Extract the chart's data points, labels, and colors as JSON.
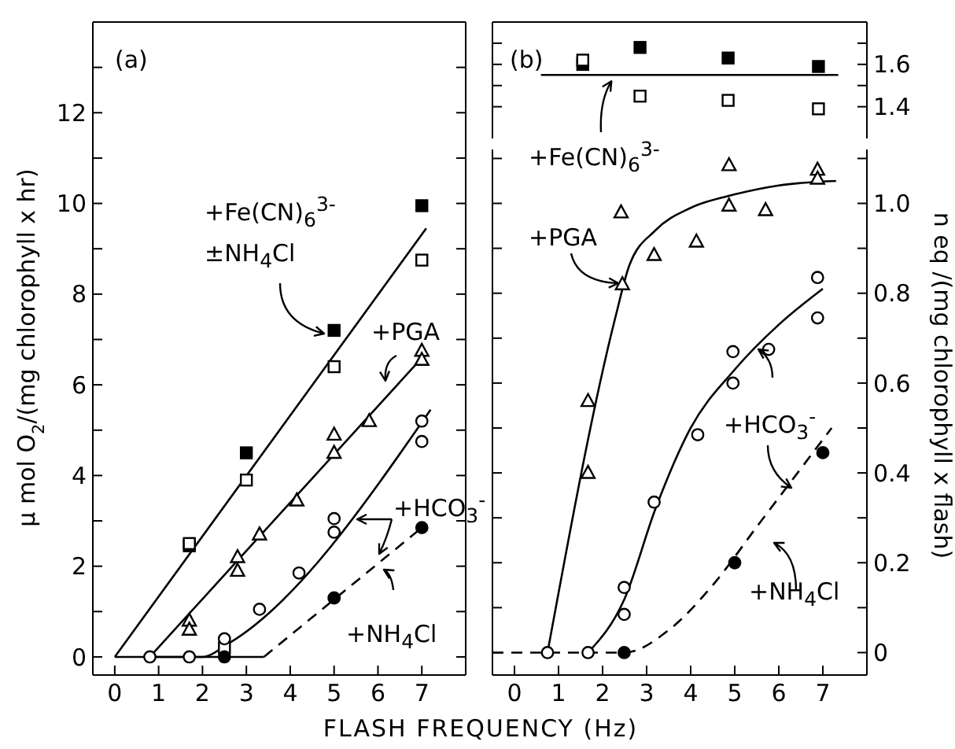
{
  "chart_data": [
    {
      "type": "scatter",
      "xlabel": "FLASH FREQUENCY (Hz)",
      "ylabel": "μ mol O$_{2}$/(mg chlorophyll x hr)",
      "xlim": [
        -0.5,
        8
      ],
      "xticks": [
        0,
        1,
        2,
        3,
        4,
        5,
        6,
        7
      ],
      "ylim": [
        -0.4,
        14
      ],
      "yticks": [
        0,
        {
          "value": 1,
          "label": null
        },
        2,
        {
          "value": 3,
          "label": null
        },
        4,
        {
          "value": 5,
          "label": null
        },
        6,
        {
          "value": 7,
          "label": null
        },
        8,
        {
          "value": 9,
          "label": null
        },
        10,
        {
          "value": 11,
          "label": null
        },
        12,
        {
          "value": 13,
          "label": null
        }
      ],
      "series": [
        {
          "type": "line",
          "color": "#000000",
          "line_style": "solid",
          "x": [
            0,
            7.1
          ],
          "values": [
            0,
            9.45
          ]
        },
        {
          "type": "line",
          "color": "#000000",
          "line_style": "solid",
          "x": [
            0.8,
            7.1
          ],
          "values": [
            0,
            6.7
          ]
        },
        {
          "type": "line",
          "color": "#000000",
          "line_style": "solid",
          "x": [
            0.8,
            2.0,
            2.6,
            7.2
          ],
          "values": [
            0,
            0,
            0.3,
            5.45
          ]
        },
        {
          "type": "line",
          "color": "#000000",
          "line_style": "solid",
          "x": [
            0,
            3.4
          ],
          "values": [
            0,
            0
          ]
        },
        {
          "type": "line",
          "color": "#000000",
          "line_style": "dashed",
          "x": [
            3.4,
            7
          ],
          "values": [
            0,
            2.85
          ]
        },
        {
          "type": "scatter",
          "marker": "square",
          "color": "#000000",
          "x": [
            1.7,
            3,
            5,
            7
          ],
          "values": [
            2.45,
            4.5,
            7.2,
            9.95
          ]
        },
        {
          "type": "scatter",
          "marker": "square",
          "color": "#ffffff",
          "x": [
            1.7,
            2.5,
            3,
            5,
            7
          ],
          "values": [
            2.5,
            0.2,
            3.9,
            6.4,
            8.75
          ]
        },
        {
          "type": "scatter",
          "marker": "triangle",
          "color": "#ffffff",
          "x": [
            1.7,
            1.7,
            2.8,
            2.8,
            3.3,
            4.15,
            5,
            5,
            5.8,
            7,
            7
          ],
          "values": [
            0.8,
            0.6,
            2.2,
            1.9,
            2.7,
            3.45,
            4.9,
            4.5,
            5.2,
            6.75,
            6.55
          ]
        },
        {
          "type": "scatter",
          "marker": "circle",
          "color": "#ffffff",
          "x": [
            0.8,
            1.7,
            2.5,
            3.3,
            4.2,
            5,
            5,
            7,
            7
          ],
          "values": [
            0,
            0,
            0.4,
            1.05,
            1.85,
            3.05,
            2.75,
            5.2,
            4.75
          ]
        },
        {
          "type": "scatter",
          "marker": "circle",
          "color": "#000000",
          "x": [
            2.5,
            5,
            7
          ],
          "values": [
            0,
            1.3,
            2.85
          ]
        }
      ],
      "annotations": [
        "(a)",
        "+Fe(CN)$_{6}$$^{3-}$",
        "±NH$_{4}$Cl",
        "+PGA",
        "+HCO$_{3}$$^{-}$",
        "+NH$_{4}$Cl"
      ]
    },
    {
      "type": "scatter",
      "tick_labels": "y",
      "xlim": [
        -0.5,
        8
      ],
      "xticks": [
        0,
        1,
        2,
        3,
        4,
        5,
        6,
        7
      ],
      "ylim": [
        1.25,
        1.8
      ],
      "yticks": [
        1.4,
        {
          "value": 1.5,
          "label": null
        },
        1.6,
        {
          "value": 1.7,
          "label": null
        }
      ],
      "series": [
        {
          "type": "line",
          "color": "#000000",
          "line_style": "solid",
          "x": [
            0.6,
            7.35
          ],
          "values": [
            1.55,
            1.55
          ]
        },
        {
          "type": "scatter",
          "marker": "square",
          "color": "#000000",
          "x": [
            1.55,
            2.85,
            4.85,
            6.9
          ],
          "values": [
            1.6,
            1.68,
            1.63,
            1.59
          ]
        },
        {
          "type": "scatter",
          "marker": "square",
          "color": "#ffffff",
          "x": [
            1.55,
            2.85,
            4.85,
            6.9
          ],
          "values": [
            1.62,
            1.45,
            1.43,
            1.39
          ]
        }
      ],
      "annotations": [
        "(b)",
        {
          "text": "+Fe(CN)$_{6}$$^{3-}$",
          "x": 2.2,
          "y": 1.55
        }
      ]
    },
    {
      "type": "scatter",
      "ylabel": "n eq /(mg chlorophyll x flash)",
      "xlim": [
        -0.5,
        8
      ],
      "xticks": [
        0,
        1,
        2,
        3,
        4,
        5,
        6,
        7
      ],
      "ylim": [
        -0.05,
        1.12
      ],
      "yticks": [
        0,
        {
          "value": 0.1,
          "label": null
        },
        0.2,
        {
          "value": 0.3,
          "label": null
        },
        0.4,
        {
          "value": 0.5,
          "label": null
        },
        0.6,
        {
          "value": 0.7,
          "label": null
        },
        0.8,
        {
          "value": 0.9,
          "label": null
        },
        {
          "value": 1,
          "label": "1.0"
        },
        {
          "value": 1.1,
          "label": null
        }
      ],
      "series": [
        {
          "type": "line",
          "color": "#000000",
          "line_style": "solid",
          "x": [
            0.75,
            2.3,
            2.6,
            3.2,
            4,
            5,
            6,
            7.3
          ],
          "values": [
            0,
            0.75,
            0.86,
            0.94,
            0.99,
            1.02,
            1.04,
            1.05
          ]
        },
        {
          "type": "line",
          "color": "#000000",
          "line_style": "solid",
          "x": [
            1.67,
            2.5,
            3.2,
            4,
            5,
            6,
            7
          ],
          "values": [
            0,
            0.12,
            0.32,
            0.5,
            0.63,
            0.73,
            0.81
          ]
        },
        {
          "type": "line",
          "color": "#000000",
          "line_style": "dashed",
          "x": [
            -0.5,
            2.5,
            3.5,
            4.5,
            5.5,
            7.2
          ],
          "values": [
            0,
            0,
            0.05,
            0.15,
            0.28,
            0.5
          ]
        },
        {
          "type": "scatter",
          "marker": "triangle",
          "color": "#ffffff",
          "x": [
            1.67,
            1.67,
            2.45,
            2.42,
            3.17,
            4.13,
            4.87,
            4.87,
            5.7,
            6.88,
            6.88
          ],
          "values": [
            0.4,
            0.56,
            0.82,
            0.98,
            0.885,
            0.915,
            1.085,
            0.995,
            0.985,
            1.075,
            1.055
          ]
        },
        {
          "type": "scatter",
          "marker": "circle",
          "color": "#ffffff",
          "x": [
            0.75,
            1.67,
            2.49,
            2.49,
            3.17,
            4.16,
            4.96,
            4.96,
            5.77,
            6.88,
            6.88
          ],
          "values": [
            0,
            0,
            0.085,
            0.145,
            0.335,
            0.485,
            0.6,
            0.67,
            0.675,
            0.745,
            0.835
          ]
        },
        {
          "type": "scatter",
          "marker": "circle",
          "color": "#000000",
          "x": [
            2.49,
            5,
            7
          ],
          "values": [
            0,
            0.2,
            0.445
          ]
        }
      ],
      "annotations": [
        "+PGA",
        "+HCO$_{3}$$^{-}$",
        "+NH$_{4}$Cl"
      ]
    }
  ]
}
